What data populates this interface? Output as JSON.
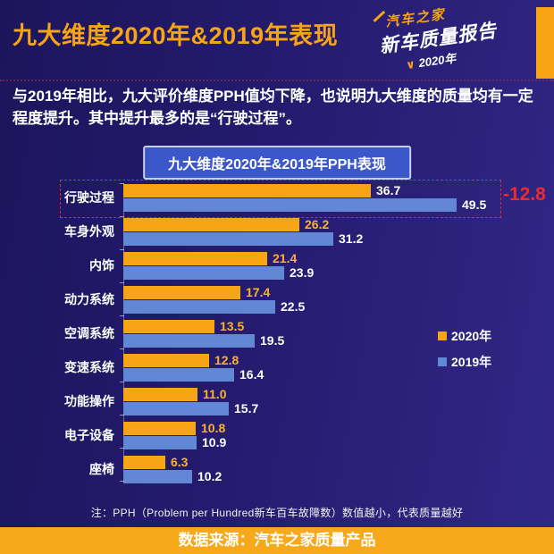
{
  "page": {
    "title": "九大维度2020年&2019年表现",
    "intro": "与2019年相比，九大评价维度PPH值均下降，也说明九大维度的质量均有一定程度提升。其中提升最多的是“行驶过程”。",
    "chart_title": "九大维度2020年&2019年PPH表现",
    "note": "注：PPH（Problem per Hundred新车百车故障数）数值越小，代表质量越好",
    "source": "数据来源：汽车之家质量产品"
  },
  "logo": {
    "brand": "汽车之家",
    "product": "新车质量报告",
    "check": "∨",
    "year": "2020年"
  },
  "legend": [
    {
      "label": "2020年",
      "color": "#f7a415"
    },
    {
      "label": "2019年",
      "color": "#6287d5"
    }
  ],
  "colors": {
    "background_start": "#1c155b",
    "background_end": "#322786",
    "accent_orange": "#f7a415",
    "bar_blue": "#6287d5",
    "banner_blue": "#3c57c9",
    "highlight_red": "#e8252c"
  },
  "chart_data": {
    "type": "bar",
    "orientation": "horizontal",
    "title": "九大维度2020年&2019年PPH表现",
    "xlabel": "",
    "ylabel": "",
    "xlim": [
      0,
      56
    ],
    "grid": false,
    "legend_position": "right",
    "categories": [
      "行驶过程",
      "车身外观",
      "内饰",
      "动力系统",
      "空调系统",
      "变速系统",
      "功能操作",
      "电子设备",
      "座椅"
    ],
    "series": [
      {
        "name": "2020年",
        "color": "#f7a415",
        "values": [
          36.7,
          26.2,
          21.4,
          17.4,
          13.5,
          12.8,
          11.0,
          10.8,
          6.3
        ],
        "labels": [
          "36.7",
          "26.2",
          "21.4",
          "17.4",
          "13.5",
          "12.8",
          "11.0",
          "10.8",
          "6.3"
        ],
        "label_color": "#f9b32a",
        "label_overrides": {
          "0": "#ffffff"
        }
      },
      {
        "name": "2019年",
        "color": "#6287d5",
        "values": [
          49.5,
          31.2,
          23.9,
          22.5,
          19.5,
          16.4,
          15.7,
          10.9,
          10.2
        ],
        "labels": [
          "49.5",
          "31.2",
          "23.9",
          "22.5",
          "19.5",
          "16.4",
          "15.7",
          "10.9",
          "10.2"
        ],
        "label_color": "#ffffff",
        "label_overrides": {}
      }
    ],
    "annotation": {
      "target_category": "行驶过程",
      "label": "-12.8",
      "color": "#ed2b2f"
    }
  }
}
